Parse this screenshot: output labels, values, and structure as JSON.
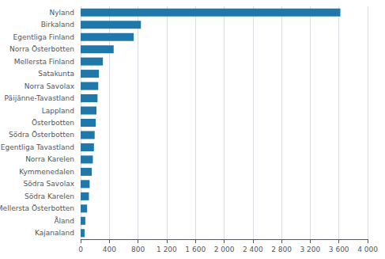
{
  "chart_data": {
    "type": "bar",
    "orientation": "horizontal",
    "categories": [
      "Nyland",
      "Birkaland",
      "Egentliga Finland",
      "Norra Österbotten",
      "Mellersta Finland",
      "Satakunta",
      "Norra Savolax",
      "Päijänne-Tavastland",
      "Lappland",
      "Österbotten",
      "Södra Österbotten",
      "Egentliga Tavastland",
      "Norra Karelen",
      "Kymmenedalen",
      "Södra Savolax",
      "Södra Karelen",
      "Mellersta Österbotten",
      "Åland",
      "Kajanaland"
    ],
    "values": [
      3620,
      840,
      740,
      460,
      310,
      255,
      245,
      235,
      220,
      210,
      195,
      185,
      170,
      155,
      125,
      115,
      90,
      65,
      55
    ],
    "color": "#1f77aa",
    "xlim": [
      0,
      4000
    ],
    "xticks": [
      0,
      400,
      800,
      {
        "value": 1200,
        "label": "1 200"
      },
      {
        "value": 1600,
        "label": "1 600"
      },
      {
        "value": 2000,
        "label": "2 000"
      },
      {
        "value": 2400,
        "label": "2 400"
      },
      {
        "value": 2800,
        "label": "2 800"
      },
      {
        "value": 3200,
        "label": "3 200"
      },
      {
        "value": 3600,
        "label": "3 600"
      },
      {
        "value": 4000,
        "label": "4 000"
      }
    ],
    "grid": true
  }
}
